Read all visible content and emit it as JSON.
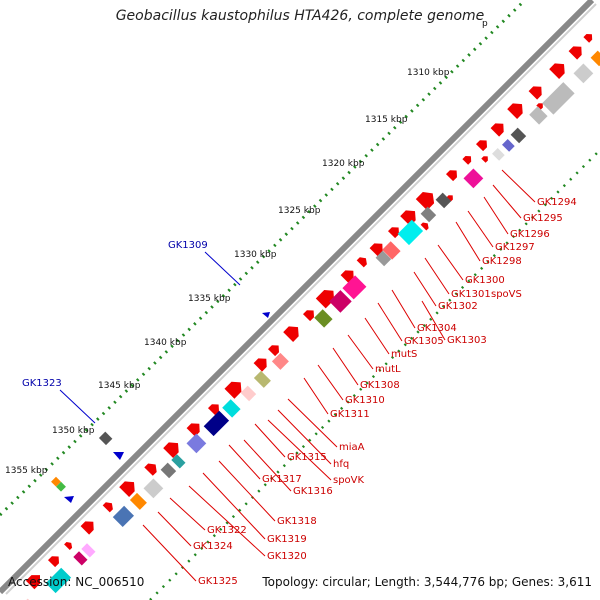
{
  "title": "Geobacillus kaustophilus HTA426, complete genome",
  "accession_label": "Accession: NC_006510",
  "topology_label": "Topology: circular; Length: 3,544,776 bp; Genes: 3,611",
  "scale_labels": [
    "1310 kbp",
    "1315 kbp",
    "1320 kbp",
    "1325 kbp",
    "1330 kbp",
    "1335 kbp",
    "1340 kbp",
    "1345 kbp",
    "1350 kbp",
    "1355 kbp"
  ],
  "top_scale_partial": "p",
  "colors": {
    "forward_gene": "#ee0000",
    "backbone": "#888888",
    "label_red": "#cc0000",
    "label_blue": "#0000aa",
    "scale_dots": "#228822"
  },
  "outer_labels": [
    "GK1309",
    "GK1323"
  ],
  "inner_labels": [
    "GK1294",
    "GK1295",
    "GK1296",
    "GK1297",
    "GK1298",
    "GK1300",
    "GK1301",
    "spoVS",
    "GK1302",
    "GK1303",
    "GK1304",
    "GK1305",
    "mutS",
    "mutL",
    "GK1308",
    "GK1310",
    "GK1311",
    "miaA",
    "hfq",
    "spoVK",
    "GK1315",
    "GK1316",
    "GK1317",
    "GK1318",
    "GK1319",
    "GK1320",
    "GK1322",
    "GK1324",
    "GK1325"
  ]
}
